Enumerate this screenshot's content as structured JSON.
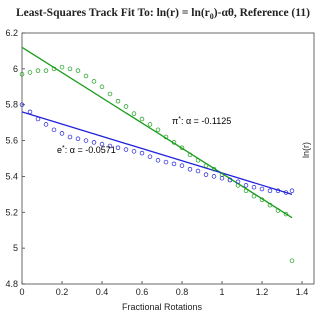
{
  "chart_data": {
    "type": "scatter",
    "title": [
      "Least-Squares Track Fit To: ln(r) = ln(r",
      "0",
      ")-αθ, Reference (11)"
    ],
    "x_label": "Fractional Rotations",
    "y_label": "ln(r)",
    "xlim": [
      0,
      1.4
    ],
    "xticks": [
      0,
      0.2,
      0.4,
      0.6,
      0.8,
      1,
      1.2,
      1.4
    ],
    "ylim": [
      4.8,
      6.2
    ],
    "yticks": [
      4.8,
      5,
      5.2,
      5.4,
      5.6,
      5.8,
      6,
      6.2
    ],
    "x": [
      0,
      0.04,
      0.08,
      0.12,
      0.16,
      0.2,
      0.24,
      0.28,
      0.32,
      0.36,
      0.4,
      0.44,
      0.48,
      0.52,
      0.56,
      0.6,
      0.64,
      0.68,
      0.72,
      0.76,
      0.8,
      0.84,
      0.88,
      0.92,
      0.96,
      1,
      1.04,
      1.08,
      1.12,
      1.16,
      1.2,
      1.24,
      1.28,
      1.32,
      1.35
    ],
    "series": [
      {
        "color": "#1a9e1a",
        "values": [
          5.97,
          5.98,
          5.99,
          5.99,
          6.0,
          6.01,
          6.0,
          5.99,
          5.96,
          5.93,
          5.9,
          5.86,
          5.82,
          5.79,
          5.75,
          5.72,
          5.69,
          5.66,
          5.62,
          5.59,
          5.56,
          5.52,
          5.49,
          5.46,
          5.44,
          5.41,
          5.38,
          5.35,
          5.32,
          5.29,
          5.27,
          5.24,
          5.21,
          5.19,
          4.93
        ]
      },
      {
        "color": "#2222dd",
        "values": [
          5.8,
          5.76,
          5.72,
          5.69,
          5.66,
          5.64,
          5.62,
          5.61,
          5.6,
          5.59,
          5.58,
          5.57,
          5.56,
          5.55,
          5.54,
          5.53,
          5.51,
          5.49,
          5.48,
          5.47,
          5.46,
          5.44,
          5.43,
          5.41,
          5.4,
          5.39,
          5.38,
          5.37,
          5.35,
          5.34,
          5.33,
          5.32,
          5.32,
          5.31,
          5.32
        ]
      }
    ],
    "fits": [
      {
        "color": "#1a9e1a",
        "x": [
          0,
          1.35
        ],
        "values": [
          6.12,
          5.17
        ]
      },
      {
        "color": "#2222dd",
        "x": [
          0,
          1.35
        ],
        "values": [
          5.76,
          5.3
        ]
      }
    ],
    "annotations": [
      [
        "π",
        "*",
        ": α = -0.1125"
      ],
      [
        "e",
        "*",
        ": α = -0.0571"
      ]
    ]
  }
}
